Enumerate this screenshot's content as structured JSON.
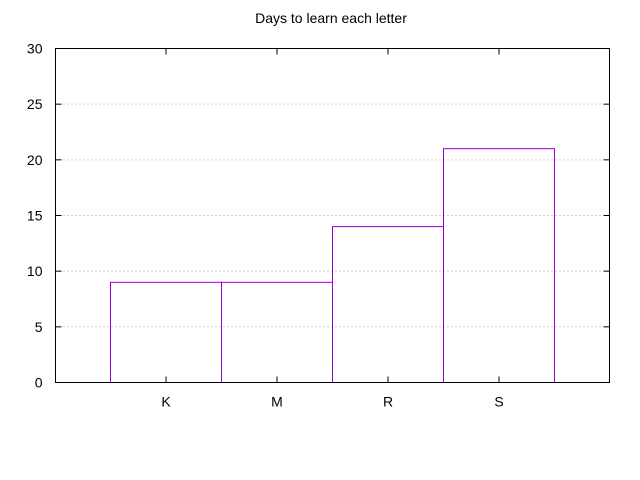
{
  "chart_data": {
    "type": "bar",
    "title": "Days to learn each letter",
    "categories": [
      "K",
      "M",
      "R",
      "S"
    ],
    "values": [
      9,
      9,
      14,
      21
    ],
    "xlabel": "",
    "ylabel": "",
    "ylim": [
      0,
      30
    ],
    "yticks": [
      0,
      5,
      10,
      15,
      20,
      25,
      30
    ],
    "grid": true,
    "bar_color": "#9400d3"
  }
}
